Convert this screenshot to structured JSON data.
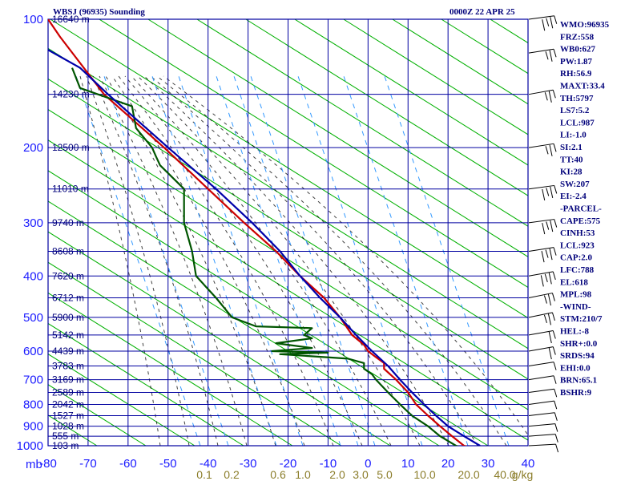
{
  "header": {
    "left_title": "WBSJ (96935) Sounding",
    "right_title": "0000Z 22 APR 25"
  },
  "indices": [
    "WMO:96935",
    "FRZ:558",
    "WB0:627",
    "PW:1.87",
    "RH:56.9",
    "MAXT:33.4",
    "TH:5797",
    "LS7:5.2",
    "LCL:987",
    "LI:-1.0",
    "SI:2.1",
    "TT:40",
    "KI:28",
    "SW:207",
    "EI:-2.4",
    "-PARCEL-",
    "CAPE:575",
    "CINH:53",
    "LCL:923",
    "CAP:2.0",
    "LFC:788",
    "EL:618",
    "MPL:98",
    "-WIND-",
    "STM:210/7",
    "HEL:-8",
    "SHR+:0.0",
    "SRDS:94",
    "EHI:0.0",
    "BRN:65.1",
    "BSHR:9"
  ],
  "colors": {
    "grid": "#0000a0",
    "dry_adiabat": "#00b000",
    "moist_adiabat": "#000000",
    "mixing_ratio": "#3399ff",
    "temperature": "#cc0000",
    "dewpoint": "#005500",
    "parcel": "#0000aa",
    "wind": "#000000"
  },
  "chart_data": {
    "type": "line",
    "subtype": "skew-T log-P sounding",
    "title": "WBSJ (96935) Sounding",
    "xlabel": "",
    "ylabel": "mb",
    "x_unit": "C",
    "y_log_scale": true,
    "y_inverted": true,
    "xlim": [
      -80,
      40
    ],
    "ylim": [
      1000,
      100
    ],
    "pressure_ticks": [
      100,
      200,
      300,
      400,
      500,
      600,
      700,
      800,
      900,
      1000
    ],
    "temperature_ticks": [
      -80,
      -70,
      -60,
      -50,
      -40,
      -30,
      -20,
      -10,
      0,
      10,
      20,
      30,
      40
    ],
    "temperature_tick_labels": [
      "-80",
      "-70",
      "-60",
      "-50",
      "-40",
      "-30",
      "-20",
      "-10",
      "0",
      "10",
      "20",
      "30",
      "40"
    ],
    "mixing_ratio_labels": [
      "0.1",
      "0.2",
      "0.6",
      "1.0",
      "2.0",
      "3.0",
      "5.0",
      "10.0",
      "20.0",
      "40.0"
    ],
    "mixing_ratio_unit": "g/kg",
    "height_labels": [
      {
        "p": 100,
        "label": "16640 m"
      },
      {
        "p": 150,
        "label": "14230 m"
      },
      {
        "p": 200,
        "label": "12500 m"
      },
      {
        "p": 250,
        "label": "11010 m"
      },
      {
        "p": 300,
        "label": "9740 m"
      },
      {
        "p": 350,
        "label": "8608 m"
      },
      {
        "p": 400,
        "label": "7620 m"
      },
      {
        "p": 450,
        "label": "6712 m"
      },
      {
        "p": 500,
        "label": "5900 m"
      },
      {
        "p": 550,
        "label": "5142 m"
      },
      {
        "p": 600,
        "label": "4439 m"
      },
      {
        "p": 650,
        "label": "3783 m"
      },
      {
        "p": 700,
        "label": "3169 m"
      },
      {
        "p": 750,
        "label": "2589 m"
      },
      {
        "p": 800,
        "label": "2042 m"
      },
      {
        "p": 850,
        "label": "1527 m"
      },
      {
        "p": 900,
        "label": "1028 m"
      },
      {
        "p": 950,
        "label": "555 m"
      },
      {
        "p": 1000,
        "label": "103 m"
      }
    ],
    "grid": true,
    "series": [
      {
        "points": [
          [
            1006,
            25
          ],
          [
            1000,
            24
          ],
          [
            950,
            21
          ],
          [
            900,
            18
          ],
          [
            850,
            15
          ],
          [
            800,
            12
          ],
          [
            750,
            10
          ],
          [
            700,
            7
          ],
          [
            660,
            4
          ],
          [
            640,
            4
          ],
          [
            620,
            2
          ],
          [
            600,
            0
          ],
          [
            580,
            -1
          ],
          [
            550,
            -4
          ],
          [
            500,
            -7
          ],
          [
            450,
            -11
          ],
          [
            400,
            -17
          ],
          [
            350,
            -23
          ],
          [
            300,
            -31
          ],
          [
            250,
            -40
          ],
          [
            200,
            -51
          ],
          [
            150,
            -66
          ],
          [
            110,
            -77
          ],
          [
            100,
            -80
          ]
        ]
      },
      {
        "points": [
          [
            1006,
            23
          ],
          [
            1000,
            22
          ],
          [
            950,
            18
          ],
          [
            900,
            15
          ],
          [
            850,
            11
          ],
          [
            800,
            8
          ],
          [
            750,
            5
          ],
          [
            700,
            2
          ],
          [
            680,
            1
          ],
          [
            660,
            -1
          ],
          [
            640,
            -1
          ],
          [
            625,
            -5
          ],
          [
            610,
            -22
          ],
          [
            605,
            -10
          ],
          [
            600,
            -24
          ],
          [
            590,
            -14
          ],
          [
            575,
            -23
          ],
          [
            560,
            -14
          ],
          [
            550,
            -16
          ],
          [
            530,
            -14
          ],
          [
            525,
            -28
          ],
          [
            500,
            -34
          ],
          [
            450,
            -38
          ],
          [
            400,
            -43
          ],
          [
            350,
            -44
          ],
          [
            300,
            -46
          ],
          [
            250,
            -46
          ],
          [
            220,
            -52
          ],
          [
            210,
            -53
          ],
          [
            200,
            -54
          ],
          [
            180,
            -58
          ],
          [
            160,
            -59
          ],
          [
            145,
            -72
          ],
          [
            130,
            -74
          ]
        ]
      },
      {
        "points": [
          [
            1000,
            28
          ],
          [
            950,
            24
          ],
          [
            900,
            20
          ],
          [
            850,
            17
          ],
          [
            800,
            14
          ],
          [
            750,
            11
          ],
          [
            700,
            8
          ],
          [
            650,
            5
          ],
          [
            600,
            1
          ],
          [
            550,
            -3
          ],
          [
            500,
            -7
          ],
          [
            450,
            -12
          ],
          [
            400,
            -17
          ],
          [
            350,
            -22
          ],
          [
            300,
            -29
          ],
          [
            250,
            -38
          ],
          [
            200,
            -50
          ],
          [
            150,
            -65
          ],
          [
            130,
            -72
          ],
          [
            118,
            -80
          ]
        ]
      }
    ],
    "wind_barbs": [
      {
        "p": 1000,
        "dir": 210,
        "spd": 5
      },
      {
        "p": 950,
        "dir": 220,
        "spd": 5
      },
      {
        "p": 900,
        "dir": 230,
        "spd": 5
      },
      {
        "p": 850,
        "dir": 240,
        "spd": 5
      },
      {
        "p": 800,
        "dir": 250,
        "spd": 5
      },
      {
        "p": 750,
        "dir": 250,
        "spd": 5
      },
      {
        "p": 700,
        "dir": 260,
        "spd": 5
      },
      {
        "p": 650,
        "dir": 260,
        "spd": 5
      },
      {
        "p": 600,
        "dir": 270,
        "spd": 10
      },
      {
        "p": 550,
        "dir": 270,
        "spd": 10
      },
      {
        "p": 500,
        "dir": 280,
        "spd": 15
      },
      {
        "p": 450,
        "dir": 280,
        "spd": 15
      },
      {
        "p": 400,
        "dir": 270,
        "spd": 20
      },
      {
        "p": 350,
        "dir": 260,
        "spd": 25
      },
      {
        "p": 300,
        "dir": 250,
        "spd": 25
      },
      {
        "p": 250,
        "dir": 250,
        "spd": 20
      },
      {
        "p": 200,
        "dir": 260,
        "spd": 15
      },
      {
        "p": 150,
        "dir": 270,
        "spd": 15
      },
      {
        "p": 120,
        "dir": 260,
        "spd": 15
      },
      {
        "p": 100,
        "dir": 250,
        "spd": 20
      }
    ]
  }
}
